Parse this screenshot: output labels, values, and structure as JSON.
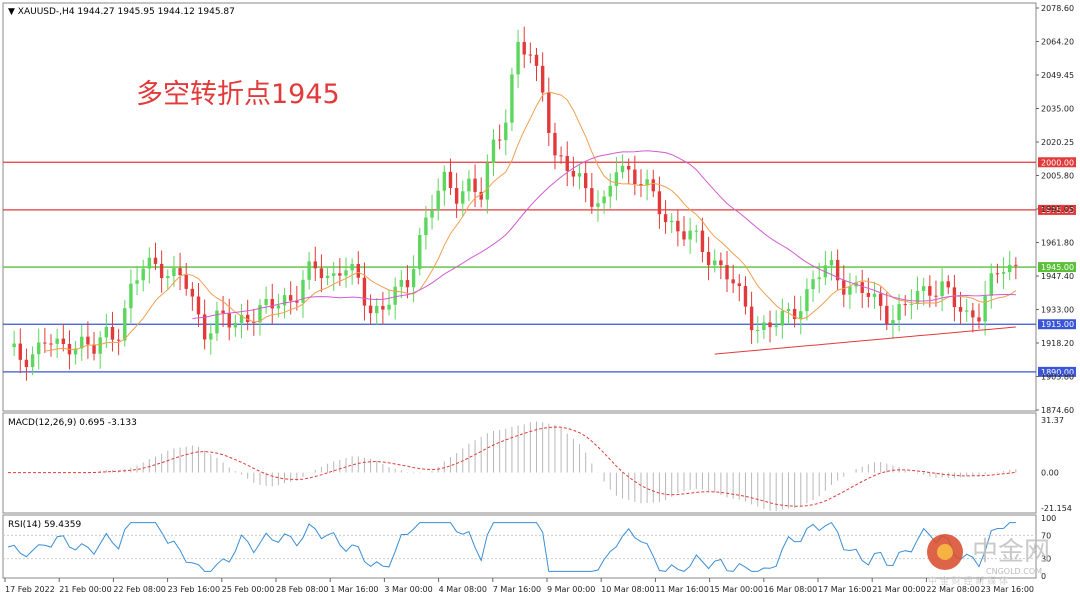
{
  "header": {
    "symbol": "XAUUSD-,H4",
    "ohlc": "1944.27 1945.95 1944.12 1945.87"
  },
  "annotation": "多空转折点1945",
  "price_axis_labels": [
    "2078.60",
    "2064.20",
    "2049.45",
    "2035.00",
    "2020.25",
    "2005.80",
    "1991.05",
    "1961.80",
    "1947.40",
    "1933.00",
    "1918.20",
    "1903.80",
    "1874.60"
  ],
  "horizontal_levels": [
    {
      "value": 2000.0,
      "label": "2000.00",
      "color": "#e23a3a"
    },
    {
      "value": 1975.0,
      "label": "1975.00",
      "color": "#e23a3a"
    },
    {
      "value": 1945.0,
      "label": "1945.00",
      "color": "#5cbf3a"
    },
    {
      "value": 1915.0,
      "label": "1915.00",
      "color": "#3a55d6"
    },
    {
      "value": 1890.0,
      "label": "1890.00",
      "color": "#3a55d6"
    }
  ],
  "macd": {
    "title": "MACD(12,26,9) 0.695 -3.133",
    "axis_labels": [
      "31.37",
      "0.00",
      "-21.154"
    ]
  },
  "rsi": {
    "title": "RSI(14) 59.4359",
    "axis_labels": [
      "100",
      "70",
      "30",
      "0"
    ]
  },
  "time_axis_labels": [
    "17 Feb 2022",
    "21 Feb 00:00",
    "22 Feb 08:00",
    "23 Feb 16:00",
    "25 Feb 00:00",
    "28 Feb 08:00",
    "1 Mar 16:00",
    "3 Mar 00:00",
    "4 Mar 08:00",
    "7 Mar 16:00",
    "9 Mar 00:00",
    "10 Mar 08:00",
    "11 Mar 16:00",
    "15 Mar 00:00",
    "16 Mar 08:00",
    "17 Mar 16:00",
    "21 Mar 00:00",
    "22 Mar 08:00",
    "23 Mar 16:00"
  ],
  "watermark": {
    "brand": "中金网",
    "url": "CNGOLD.COM",
    "slogan": "中 金 财 经 新 媒 体"
  },
  "colors": {
    "bull": "#5cd65c",
    "bear": "#e23a3a",
    "ma_fast": "#f0a050",
    "ma_mid": "#d05cd0",
    "ma_slow": "#e23a3a"
  },
  "chart_data": {
    "type": "candlestick",
    "y_range": [
      1870,
      2082
    ],
    "candles_close_anchors": [
      1900,
      1898,
      1900,
      1906,
      1902,
      1906,
      1905,
      1900,
      1912,
      1912,
      1935,
      1945,
      1950,
      1938,
      1940,
      1925,
      1910,
      1918,
      1915,
      1920,
      1920,
      1923,
      1930,
      1928,
      1940,
      1945,
      1940,
      1945,
      1938,
      1925,
      1922,
      1930,
      1935,
      1960,
      1975,
      1990,
      1985,
      1988,
      1980,
      2010,
      2025,
      2060,
      2055,
      2040,
      2000,
      1995,
      1992,
      1982,
      1975,
      2000,
      1995,
      1990,
      1978,
      1970,
      1965,
      1960,
      1952,
      1948,
      1940,
      1925,
      1915,
      1914,
      1916,
      1920,
      1930,
      1940,
      1945,
      1938,
      1934,
      1930,
      1925,
      1920,
      1922,
      1930,
      1935,
      1935,
      1925,
      1920,
      1922,
      1935,
      1945,
      1946
    ]
  }
}
